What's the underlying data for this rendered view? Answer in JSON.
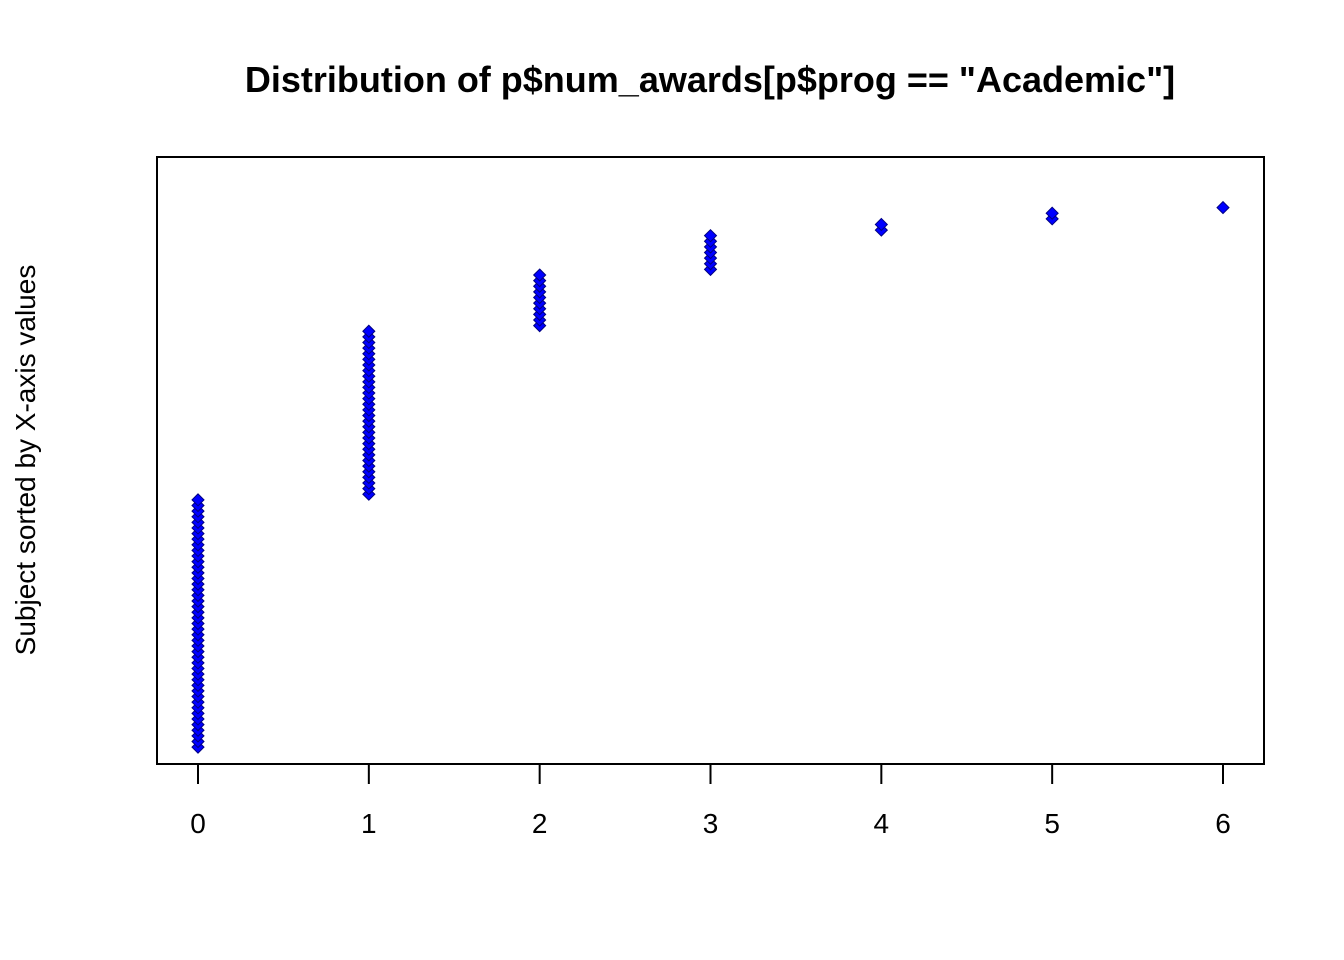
{
  "chart_data": {
    "type": "scatter",
    "title": "Distribution of p$num_awards[p$prog == \"Academic\"]",
    "xlabel": "",
    "ylabel": "Subject sorted by X-axis values",
    "xticks": [
      0,
      1,
      2,
      3,
      4,
      5,
      6
    ],
    "xlim": [
      -0.24,
      6.24
    ],
    "ylim": [
      -2,
      106
    ],
    "grid": false,
    "legend": "none",
    "marker": "diamond",
    "marker_color": "#0000ff",
    "marker_edge_color": "#000080",
    "counts_by_x": [
      {
        "x": 0,
        "count": 45
      },
      {
        "x": 1,
        "count": 30
      },
      {
        "x": 2,
        "count": 10
      },
      {
        "x": 3,
        "count": 7
      },
      {
        "x": 4,
        "count": 2
      },
      {
        "x": 5,
        "count": 2
      },
      {
        "x": 6,
        "count": 1
      }
    ]
  }
}
